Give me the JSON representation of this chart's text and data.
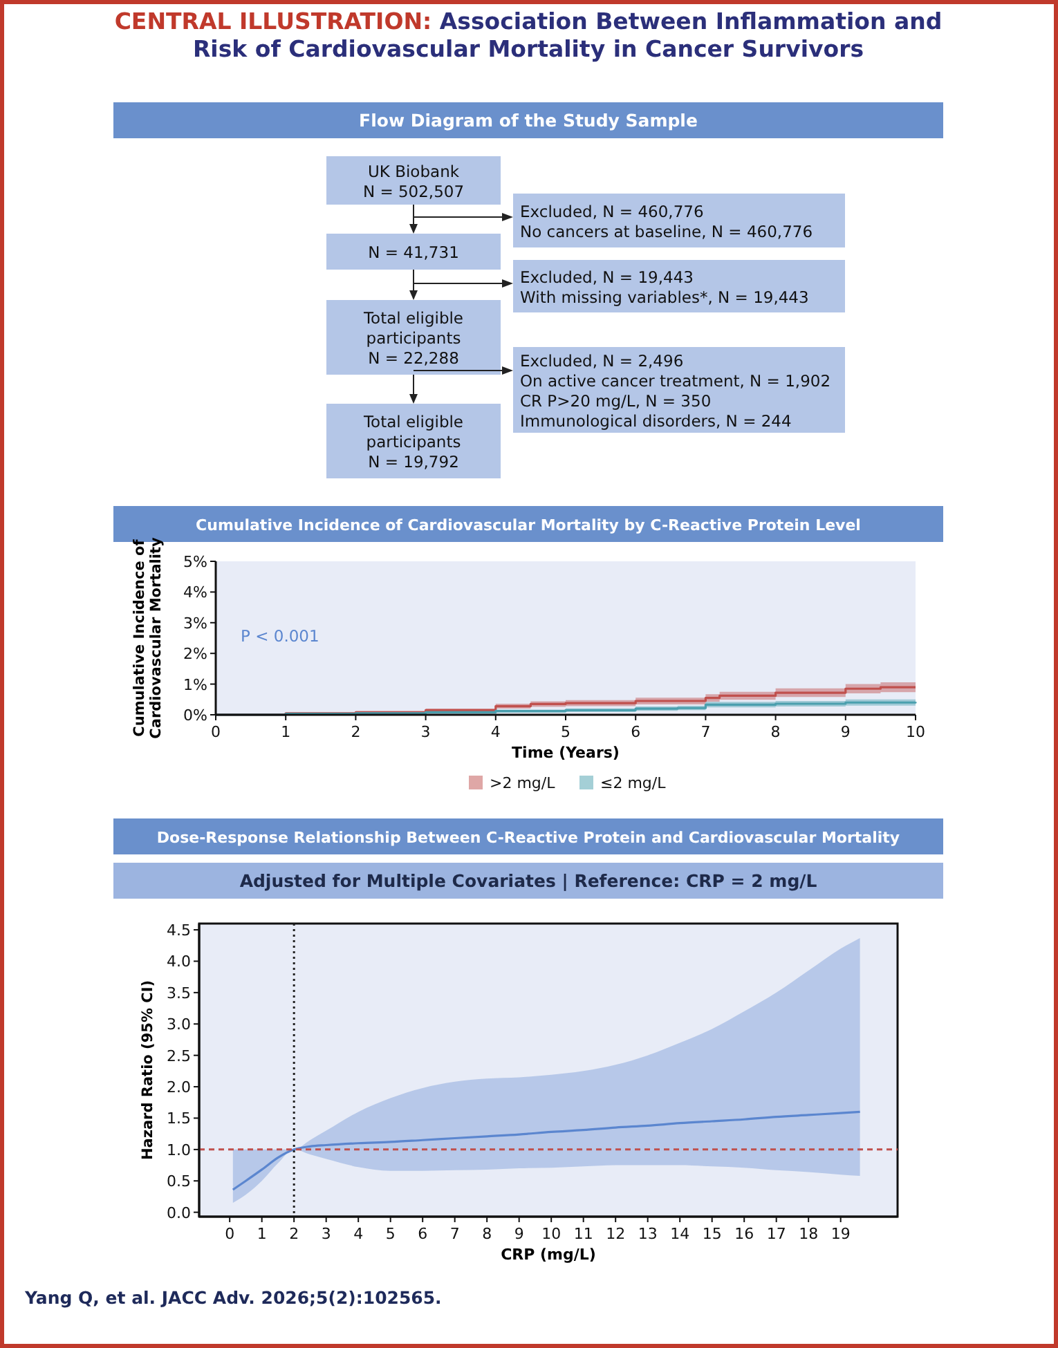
{
  "chart_data": [
    {
      "type": "other",
      "title": "CENTRAL ILLUSTRATION: Association Between Inflammation and Risk of Cardiovascular Mortality in Cancer Survivors",
      "subtitle": "Flow Diagram of the Study Sample",
      "annotations": [
        "UK Biobank\nN = 502,507",
        "Excluded, N = 460,776\nNo cancers at baseline, N = 460,776",
        "N = 41,731",
        "Excluded, N = 19,443\nWith missing variables*, N = 19,443",
        "Total eligible\nparticipants\nN = 22,288",
        "Excluded, N = 2,496\nOn active cancer treatment, N = 1,902\nCR P>20 mg/L, N = 350\nImmunological disorders, N = 244",
        "Total eligible\nparticipants\nN = 19,792"
      ]
    },
    {
      "type": "step",
      "title": "Cumulative Incidence of Cardiovascular Mortality by C-Reactive Protein Level",
      "xlabel": "Time (Years)",
      "ylabel": "Cumulative Incidence of\nCardiovascular Mortality",
      "xlim": [
        0,
        10
      ],
      "xticks": [
        0,
        1,
        2,
        3,
        4,
        5,
        6,
        7,
        8,
        9,
        10
      ],
      "ylim": [
        0,
        5
      ],
      "yticks": [
        {
          "value": 0,
          "label": "0%"
        },
        {
          "value": 1,
          "label": "1%"
        },
        {
          "value": 2,
          "label": "2%"
        },
        {
          "value": 3,
          "label": "3%"
        },
        {
          "value": 4,
          "label": "4%"
        },
        {
          "value": 5,
          "label": "5%"
        }
      ],
      "legend": "bottom",
      "annotations": [
        "P < 0.001"
      ],
      "series": [
        {
          "name": ">2 mg/L",
          "color": "#c0504d",
          "x": [
            0,
            1,
            2,
            3,
            4,
            4.5,
            5,
            6,
            7,
            7.2,
            8,
            9,
            9.5,
            10
          ],
          "values": [
            0,
            0.05,
            0.08,
            0.15,
            0.28,
            0.35,
            0.38,
            0.45,
            0.55,
            0.62,
            0.72,
            0.85,
            0.9,
            0.9
          ],
          "lower": [
            0,
            0.02,
            0.04,
            0.1,
            0.2,
            0.26,
            0.28,
            0.34,
            0.43,
            0.49,
            0.58,
            0.7,
            0.74,
            0.74
          ],
          "upper": [
            0,
            0.08,
            0.12,
            0.2,
            0.36,
            0.44,
            0.48,
            0.56,
            0.67,
            0.75,
            0.86,
            1.0,
            1.06,
            1.06
          ]
        },
        {
          "name": "≤2 mg/L",
          "color": "#4a9fae",
          "x": [
            0,
            1,
            2,
            3,
            4,
            5,
            6,
            6.6,
            7,
            8,
            9,
            10
          ],
          "values": [
            0,
            0.03,
            0.05,
            0.08,
            0.12,
            0.15,
            0.2,
            0.22,
            0.33,
            0.36,
            0.4,
            0.42
          ],
          "lower": [
            0,
            0.01,
            0.02,
            0.04,
            0.07,
            0.09,
            0.13,
            0.15,
            0.24,
            0.27,
            0.3,
            0.32
          ],
          "upper": [
            0,
            0.05,
            0.08,
            0.12,
            0.17,
            0.21,
            0.27,
            0.29,
            0.42,
            0.45,
            0.5,
            0.52
          ]
        }
      ]
    },
    {
      "type": "line",
      "title": "Dose-Response Relationship Between C-Reactive Protein and Cardiovascular Mortality",
      "subtitle": "Adjusted for Multiple Covariates | Reference: CRP = 2 mg/L",
      "xlabel": "CRP (mg/L)",
      "ylabel": "Hazard Ratio (95% CI)",
      "xlim": [
        -0.95,
        20.77
      ],
      "xticks": [
        0,
        1,
        2,
        3,
        4,
        5,
        6,
        7,
        8,
        9,
        10,
        11,
        12,
        13,
        14,
        15,
        16,
        17,
        18,
        19
      ],
      "ylim": [
        -0.07,
        4.6
      ],
      "yticks": [
        {
          "value": 0,
          "label": "0.0"
        },
        {
          "value": 0.5,
          "label": "0.5"
        },
        {
          "value": 1,
          "label": "1.0"
        },
        {
          "value": 1.5,
          "label": "1.5"
        },
        {
          "value": 2,
          "label": "2.0"
        },
        {
          "value": 2.5,
          "label": "2.5"
        },
        {
          "value": 3,
          "label": "3.0"
        },
        {
          "value": 3.5,
          "label": "3.5"
        },
        {
          "value": 4,
          "label": "4.0"
        },
        {
          "value": 4.5,
          "label": "4.5"
        }
      ],
      "ref_lines": [
        {
          "axis": "x",
          "value": 2,
          "color": "#222222",
          "line_style": "dotted"
        },
        {
          "axis": "y",
          "value": 1,
          "color": "#c0504d",
          "line_style": "dashed"
        }
      ],
      "annotations": [
        "Yang Q, et al. JACC Adv. 2026;5(2):102565."
      ],
      "series": [
        {
          "color": "#5b86cf",
          "x": [
            0.1,
            0.5,
            1,
            1.5,
            2,
            2.5,
            3,
            4,
            5,
            6,
            7,
            8,
            9,
            10,
            11,
            12,
            13,
            14,
            15,
            16,
            17,
            18,
            19,
            19.6
          ],
          "values": [
            0.36,
            0.5,
            0.68,
            0.87,
            1.0,
            1.05,
            1.07,
            1.1,
            1.12,
            1.15,
            1.18,
            1.21,
            1.24,
            1.28,
            1.31,
            1.35,
            1.38,
            1.42,
            1.45,
            1.48,
            1.52,
            1.55,
            1.58,
            1.6
          ],
          "lower": [
            0.15,
            0.28,
            0.5,
            0.78,
            1.0,
            0.92,
            0.85,
            0.72,
            0.66,
            0.66,
            0.67,
            0.68,
            0.7,
            0.71,
            0.73,
            0.75,
            0.75,
            0.75,
            0.73,
            0.71,
            0.67,
            0.64,
            0.6,
            0.58
          ],
          "upper": [
            1.0,
            1.0,
            1.0,
            1.0,
            1.0,
            1.15,
            1.3,
            1.6,
            1.82,
            1.98,
            2.08,
            2.13,
            2.15,
            2.19,
            2.25,
            2.35,
            2.5,
            2.7,
            2.92,
            3.2,
            3.5,
            3.85,
            4.2,
            4.37
          ]
        }
      ]
    }
  ]
}
